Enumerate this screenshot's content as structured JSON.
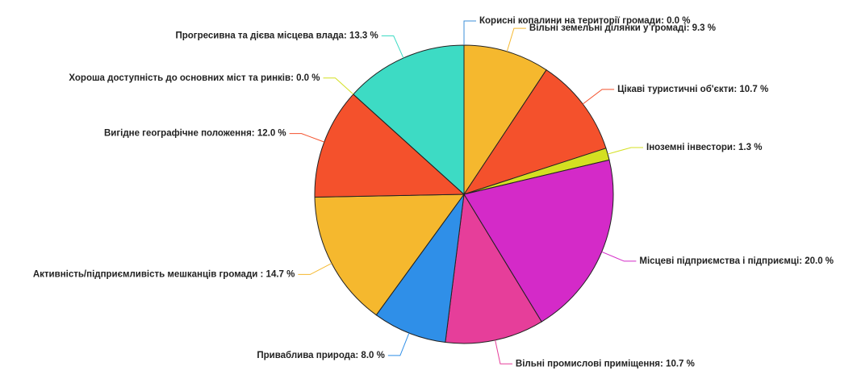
{
  "chart_data": {
    "type": "pie",
    "categories": [
      "Корисні копалини на території громади",
      "Вільні земельні ділянки у громаді",
      "Цікаві туристичні об'єкти",
      "Іноземні інвестори",
      "Місцеві підприємства і підприємці",
      "Вільні промислові приміщення",
      "Приваблива природа",
      "Активність/підприємливість мешканців громади ",
      "Вигідне географічне положення",
      "Хороша доступність до основних міст та ринків",
      "Прогресивна та дієва місцева влада"
    ],
    "values": [
      0.0,
      9.3,
      10.7,
      1.3,
      20.0,
      10.7,
      8.0,
      14.7,
      12.0,
      0.0,
      13.3
    ],
    "value_labels": [
      "0.0 %",
      "9.3 %",
      "10.7 %",
      "1.3 %",
      "20.0 %",
      "10.7 %",
      "8.0 %",
      "14.7 %",
      "12.0 %",
      "0.0 %",
      "13.3 %"
    ],
    "colors": [
      "#3b8fd9",
      "#f5b82e",
      "#f4512c",
      "#d4e021",
      "#d42ac8",
      "#e63e9a",
      "#2f8fe8",
      "#f5b82e",
      "#f4512c",
      "#d4e021",
      "#3ddbc4"
    ]
  }
}
